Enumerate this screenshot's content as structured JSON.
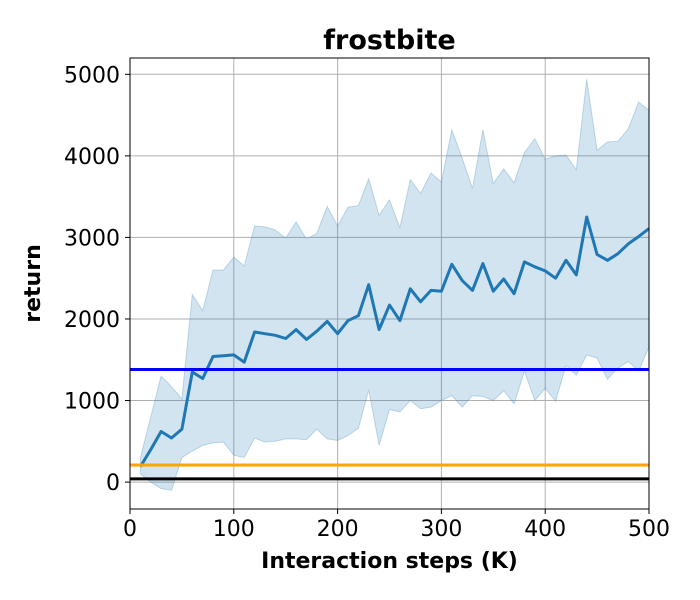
{
  "chart_data": {
    "type": "line",
    "title": "frostbite",
    "xlabel": "Interaction steps (K)",
    "ylabel": "return",
    "xlim": [
      0,
      500
    ],
    "ylim": [
      -330,
      5200
    ],
    "xticks": [
      0,
      100,
      200,
      300,
      400,
      500
    ],
    "yticks": [
      0,
      1000,
      2000,
      3000,
      4000,
      5000
    ],
    "grid": true,
    "series": [
      {
        "style": "line-with-band",
        "color": "#1f77b4",
        "x": [
          10,
          20,
          30,
          40,
          50,
          60,
          70,
          80,
          90,
          100,
          110,
          120,
          130,
          140,
          150,
          160,
          170,
          180,
          190,
          200,
          210,
          220,
          230,
          240,
          250,
          260,
          270,
          280,
          290,
          300,
          310,
          320,
          330,
          340,
          350,
          360,
          370,
          380,
          390,
          400,
          410,
          420,
          430,
          440,
          450,
          460,
          470,
          480,
          490,
          500
        ],
        "mean": [
          190,
          400,
          620,
          540,
          650,
          1350,
          1270,
          1540,
          1550,
          1560,
          1470,
          1840,
          1820,
          1800,
          1760,
          1870,
          1750,
          1850,
          1970,
          1820,
          1980,
          2040,
          2420,
          1870,
          2170,
          1980,
          2370,
          2210,
          2350,
          2340,
          2670,
          2470,
          2350,
          2680,
          2340,
          2490,
          2310,
          2700,
          2640,
          2590,
          2500,
          2720,
          2540,
          3250,
          2790,
          2720,
          2800,
          2920,
          3010,
          3110
        ],
        "upper": [
          300,
          800,
          1300,
          1170,
          1020,
          2300,
          2100,
          2600,
          2600,
          2760,
          2650,
          3140,
          3130,
          3090,
          2990,
          3190,
          2980,
          3050,
          3380,
          3140,
          3370,
          3390,
          3720,
          3270,
          3460,
          3120,
          3710,
          3540,
          3790,
          3680,
          4320,
          3970,
          3600,
          4320,
          3660,
          3840,
          3670,
          4040,
          4210,
          3960,
          4000,
          4010,
          3830,
          4940,
          4070,
          4170,
          4180,
          4330,
          4660,
          4560
        ],
        "lower": [
          100,
          0,
          -80,
          -100,
          300,
          380,
          450,
          480,
          490,
          330,
          300,
          540,
          490,
          500,
          530,
          530,
          520,
          650,
          530,
          510,
          570,
          660,
          1130,
          450,
          890,
          860,
          1000,
          900,
          920,
          1000,
          1060,
          920,
          1060,
          1050,
          1000,
          1120,
          960,
          1360,
          1000,
          1150,
          990,
          1430,
          1310,
          1560,
          1520,
          1260,
          1400,
          1480,
          1360,
          1660
        ]
      },
      {
        "style": "hline",
        "y": 1380,
        "color": "#0000ff"
      },
      {
        "style": "hline",
        "y": 210,
        "color": "#ffa500"
      },
      {
        "style": "hline",
        "y": 40,
        "color": "#000000"
      }
    ]
  }
}
